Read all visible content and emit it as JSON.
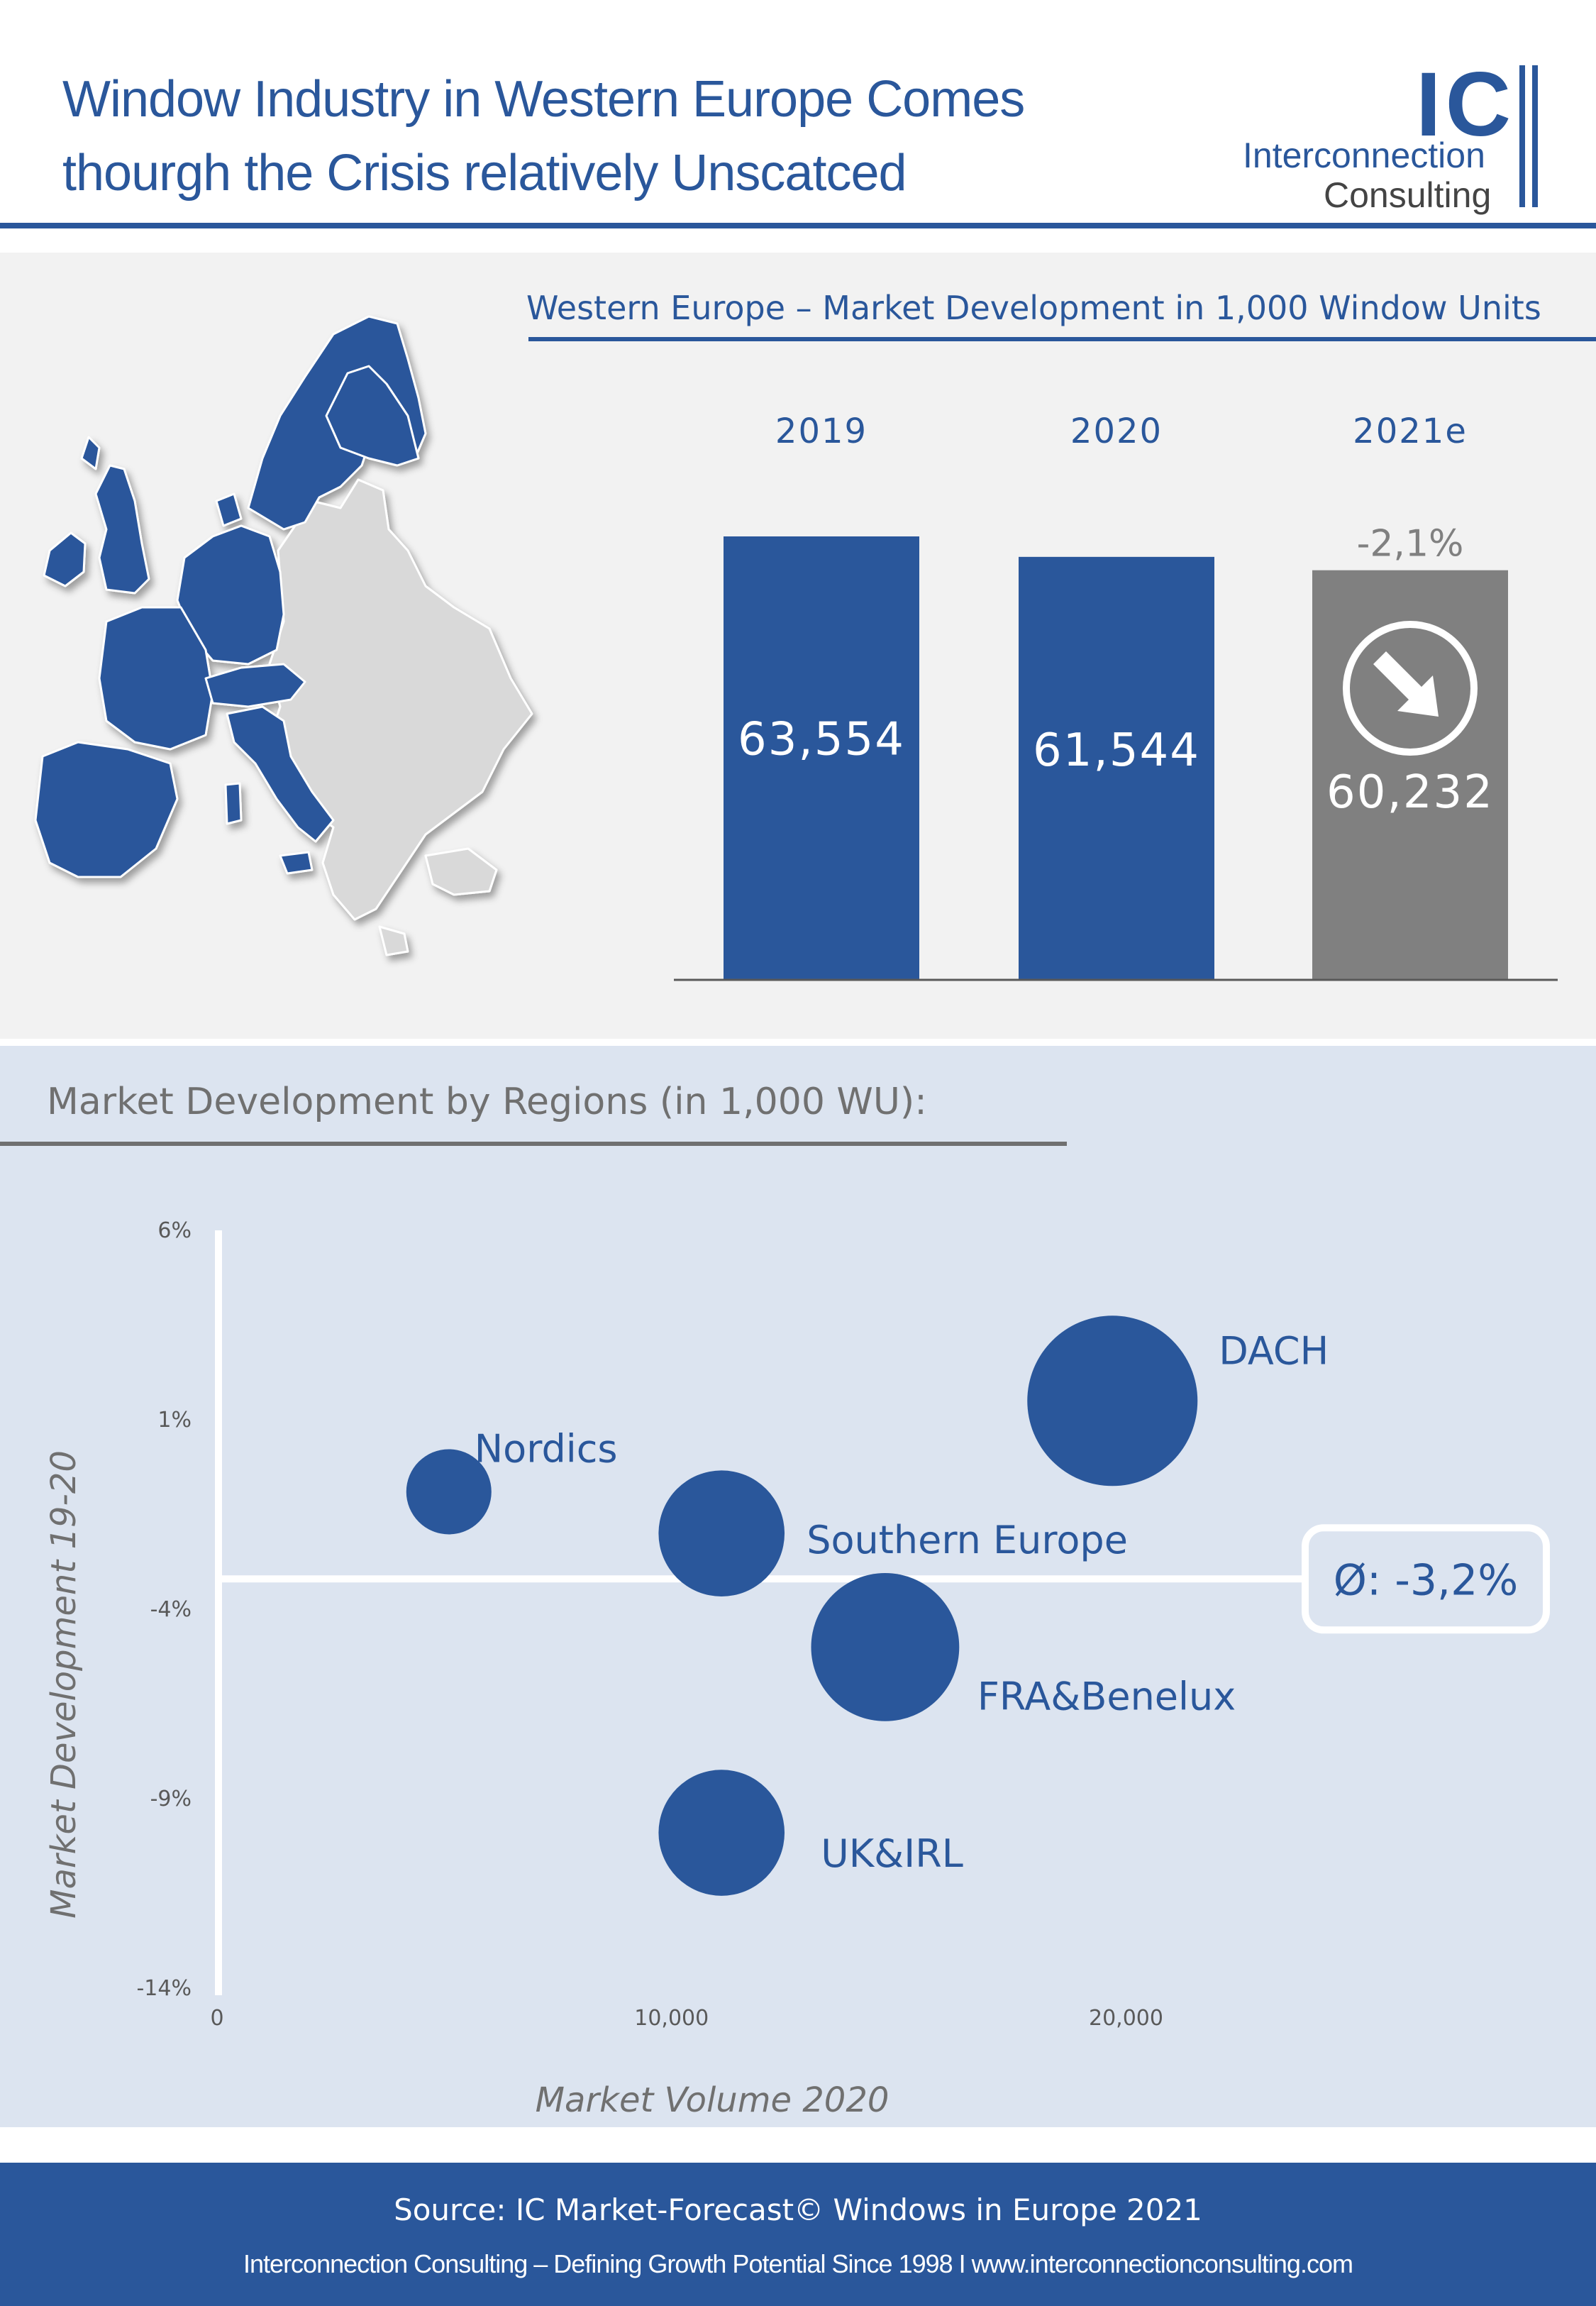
{
  "header": {
    "title_line1": "Window Industry in Western Europe Comes",
    "title_line2": "thourgh the Crisis relatively Unscatced",
    "logo_letters": "IC",
    "logo_line1": "Interconnection",
    "logo_line2": "Consulting"
  },
  "colors": {
    "blue": "#2a579b",
    "gray_bar": "#808080",
    "light_panel": "#f2f2f2",
    "bubble_panel": "#dce4f0"
  },
  "chart_data": [
    {
      "type": "bar",
      "title": "Western Europe – Market Development in 1,000 Window Units",
      "categories": [
        "2019",
        "2020",
        "2021e"
      ],
      "values": [
        63554,
        61544,
        60232
      ],
      "value_labels": [
        "63,554",
        "61,544",
        "60,232"
      ],
      "change_label": "-2,1%",
      "highlight": "2021e",
      "trend_icon": "arrow-down-right-icon",
      "grid": false
    },
    {
      "type": "scatter",
      "title": "Market Development by Regions (in 1,000 WU):",
      "xlabel": "Market Volume 2020",
      "ylabel": "Market Development 19-20",
      "xlim": [
        0,
        27000
      ],
      "ylim": [
        -14,
        6
      ],
      "x_ticks": [
        0,
        10000,
        20000
      ],
      "x_tick_labels": [
        "0",
        "10,000",
        "20,000"
      ],
      "y_ticks": [
        6,
        1,
        -4,
        -9,
        -14
      ],
      "y_tick_labels": [
        "6%",
        "1%",
        "-4%",
        "-9%",
        "-14%"
      ],
      "average": -3.2,
      "average_label": "Ø: -3,2%",
      "grid": false,
      "points": [
        {
          "name": "DACH",
          "x": 19700,
          "y": 1.5,
          "size": 1.0
        },
        {
          "name": "Nordics",
          "x": 5100,
          "y": -0.9,
          "size": 0.5
        },
        {
          "name": "Southern Europe",
          "x": 11100,
          "y": -2.0,
          "size": 0.74
        },
        {
          "name": "FRA&Benelux",
          "x": 14700,
          "y": -5.0,
          "size": 0.87
        },
        {
          "name": "UK&IRL",
          "x": 11100,
          "y": -9.9,
          "size": 0.74
        }
      ]
    }
  ],
  "footer": {
    "source": "Source: IC Market-Forecast© Windows in Europe 2021",
    "tagline": "Interconnection Consulting – Defining Growth Potential Since 1998 I www.interconnectionconsulting.com"
  }
}
